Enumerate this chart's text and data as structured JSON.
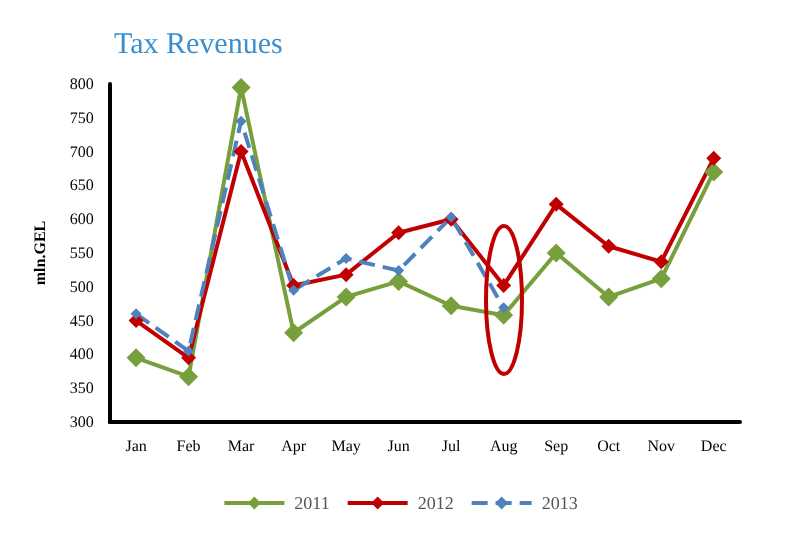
{
  "chart_data": {
    "type": "line",
    "title": "Tax Revenues",
    "ylabel": "mln.GEL",
    "categories": [
      "Jan",
      "Feb",
      "Mar",
      "Apr",
      "May",
      "Jun",
      "Jul",
      "Aug",
      "Sep",
      "Oct",
      "Nov",
      "Dec"
    ],
    "series": [
      {
        "name": "2011",
        "color": "#77a03c",
        "values": [
          395,
          367,
          795,
          432,
          485,
          508,
          472,
          458,
          550,
          485,
          512,
          670
        ]
      },
      {
        "name": "2012",
        "color": "#c00000",
        "values": [
          450,
          395,
          700,
          502,
          518,
          580,
          600,
          502,
          622,
          560,
          537,
          690
        ]
      },
      {
        "name": "2013",
        "color": "#4f81bd",
        "line_style": "dashed",
        "values": [
          460,
          405,
          745,
          495,
          542,
          524,
          603,
          469,
          null,
          null,
          null,
          null
        ]
      }
    ],
    "ylim": [
      300,
      800
    ],
    "yticks": [
      300,
      350,
      400,
      450,
      500,
      550,
      600,
      650,
      700,
      750,
      800
    ],
    "grid": false,
    "legend": "bottom",
    "marker": "diamond",
    "line_style": "solid"
  }
}
